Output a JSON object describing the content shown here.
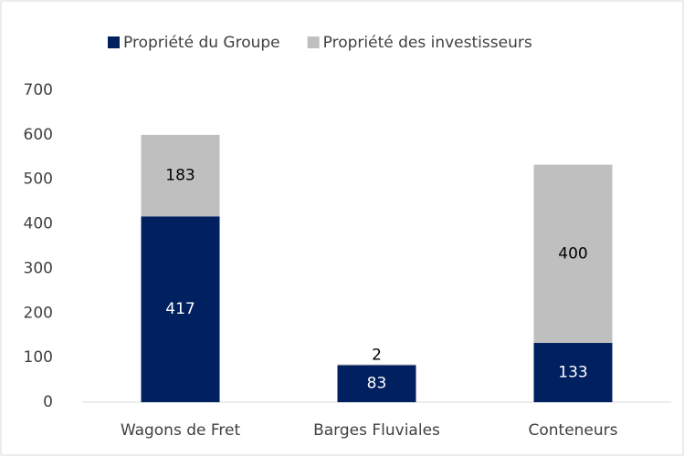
{
  "chart_data": {
    "type": "stacked_bar",
    "categories": [
      "Wagons de Fret",
      "Barges Fluviales",
      "Conteneurs"
    ],
    "series": [
      {
        "name": "Propriété du Groupe",
        "color": "#002060",
        "values": [
          417,
          83,
          133
        ]
      },
      {
        "name": "Propriété des investisseurs",
        "color": "#bfbfbf",
        "values": [
          183,
          2,
          400
        ]
      }
    ],
    "ylim": [
      0,
      700
    ],
    "yticks": [
      0,
      100,
      200,
      300,
      400,
      500,
      600,
      700
    ],
    "grid": false,
    "legend": "top"
  }
}
